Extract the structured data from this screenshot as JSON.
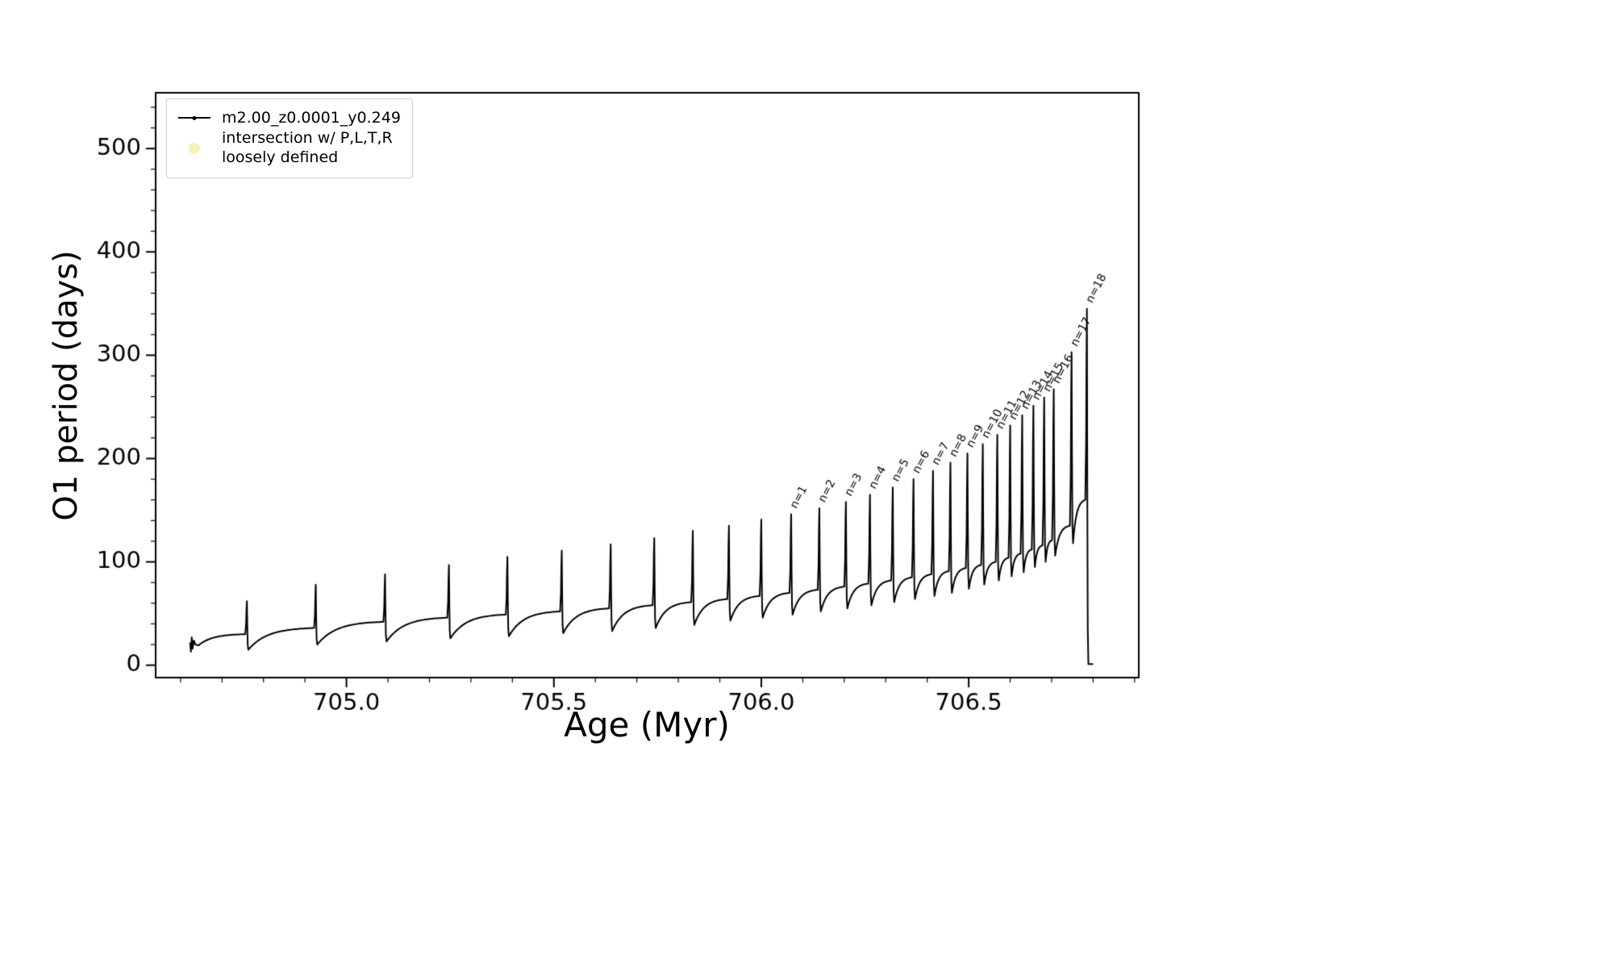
{
  "legend": {
    "entries": [
      {
        "label": "m2.00_z0.0001_y0.249",
        "marker": "line-dot",
        "color": "#000000"
      },
      {
        "label": "intersection w/ P,L,T,R\nloosely defined",
        "marker": "circle",
        "color": "#f5f2b4"
      }
    ]
  },
  "chart_data": {
    "type": "line",
    "title": "",
    "xlabel": "Age (Myr)",
    "ylabel": "O1 period (days)",
    "xlim": [
      704.54,
      706.91
    ],
    "ylim": [
      -12,
      554
    ],
    "xticks": [
      705.0,
      705.5,
      706.0,
      706.5
    ],
    "yticks": [
      0,
      100,
      200,
      300,
      400,
      500
    ],
    "x_minor_step": 0.1,
    "y_minor_step": 20,
    "grid": false,
    "legend_position": "upper left",
    "annotation_rotation_deg": 62,
    "line_color": "#000000",
    "series": [
      {
        "name": "m2.00_z0.0001_y0.249",
        "color": "#000000",
        "marker": "point",
        "start_cluster": [
          [
            704.623,
            22
          ],
          [
            704.625,
            13
          ],
          [
            704.627,
            27
          ],
          [
            704.629,
            16
          ],
          [
            704.632,
            24
          ],
          [
            704.636,
            20
          ]
        ],
        "start": {
          "t": 704.64,
          "y": 18
        },
        "pulses": [
          {
            "t": 704.76,
            "peak": 62,
            "base": 30,
            "dip": 15
          },
          {
            "t": 704.926,
            "peak": 78,
            "base": 36,
            "dip": 20
          },
          {
            "t": 705.093,
            "peak": 88,
            "base": 42,
            "dip": 23
          },
          {
            "t": 705.247,
            "peak": 97,
            "base": 46,
            "dip": 26
          },
          {
            "t": 705.388,
            "peak": 105,
            "base": 49,
            "dip": 28
          },
          {
            "t": 705.519,
            "peak": 111,
            "base": 52,
            "dip": 31
          },
          {
            "t": 705.637,
            "peak": 117,
            "base": 55,
            "dip": 33
          },
          {
            "t": 705.742,
            "peak": 123,
            "base": 58,
            "dip": 36
          },
          {
            "t": 705.835,
            "peak": 130,
            "base": 61,
            "dip": 39
          },
          {
            "t": 705.922,
            "peak": 135,
            "base": 64,
            "dip": 43
          },
          {
            "t": 706.0,
            "peak": 141,
            "base": 67,
            "dip": 46
          },
          {
            "t": 706.072,
            "peak": 146,
            "base": 70,
            "dip": 49,
            "label": "n=1"
          },
          {
            "t": 706.14,
            "peak": 152,
            "base": 73,
            "dip": 52,
            "label": "n=2"
          },
          {
            "t": 706.204,
            "peak": 158,
            "base": 76,
            "dip": 55,
            "label": "n=3"
          },
          {
            "t": 706.262,
            "peak": 165,
            "base": 79,
            "dip": 58,
            "label": "n=4"
          },
          {
            "t": 706.317,
            "peak": 172,
            "base": 82,
            "dip": 61,
            "label": "n=5"
          },
          {
            "t": 706.367,
            "peak": 180,
            "base": 85,
            "dip": 64,
            "label": "n=6"
          },
          {
            "t": 706.414,
            "peak": 188,
            "base": 88,
            "dip": 67,
            "label": "n=7"
          },
          {
            "t": 706.456,
            "peak": 196,
            "base": 91,
            "dip": 70,
            "label": "n=8"
          },
          {
            "t": 706.497,
            "peak": 205,
            "base": 94,
            "dip": 74,
            "label": "n=9"
          },
          {
            "t": 706.534,
            "peak": 214,
            "base": 97,
            "dip": 78,
            "label": "n=10"
          },
          {
            "t": 706.569,
            "peak": 223,
            "base": 100,
            "dip": 82,
            "label": "n=11"
          },
          {
            "t": 706.6,
            "peak": 232,
            "base": 104,
            "dip": 86,
            "label": "n=12"
          },
          {
            "t": 706.629,
            "peak": 242,
            "base": 108,
            "dip": 90,
            "label": "n=13"
          },
          {
            "t": 706.656,
            "peak": 251,
            "base": 112,
            "dip": 95,
            "label": "n=14"
          },
          {
            "t": 706.682,
            "peak": 259,
            "base": 116,
            "dip": 100,
            "label": "n=15"
          },
          {
            "t": 706.705,
            "peak": 267,
            "base": 121,
            "dip": 106,
            "label": "n=16"
          },
          {
            "t": 706.748,
            "peak": 303,
            "base": 135,
            "dip": 118,
            "label": "n=17"
          },
          {
            "t": 706.785,
            "peak": 345,
            "base": 160,
            "dip": 1,
            "label": "n=18"
          }
        ],
        "end": {
          "t": 706.8,
          "y": 1
        }
      }
    ]
  }
}
